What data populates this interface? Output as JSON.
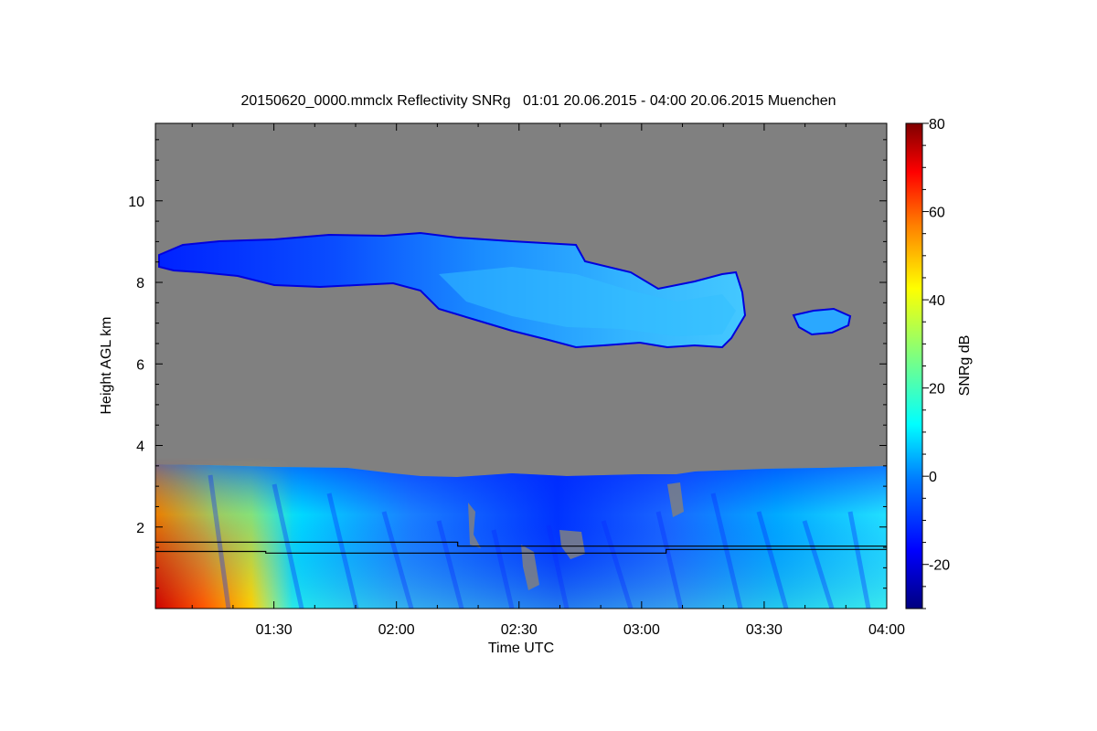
{
  "chart_data": {
    "type": "heatmap",
    "title": "20150620_0000.mmclx Reflectivity SNRg   01:01 20.06.2015 - 04:00 20.06.2015 Muenchen",
    "xlabel": "Time UTC",
    "ylabel": "Height AGL km",
    "colorbar_label": "SNRg dB",
    "xlim": [
      "01:01",
      "04:00"
    ],
    "ylim": [
      0,
      11.9
    ],
    "x_ticks": [
      "01:30",
      "02:00",
      "02:30",
      "03:00",
      "03:30",
      "04:00"
    ],
    "y_ticks": [
      2,
      4,
      6,
      8,
      10
    ],
    "colorbar_range": [
      -30,
      80
    ],
    "colorbar_ticks": [
      -20,
      0,
      20,
      40,
      60,
      80
    ],
    "background_color": "#808080",
    "colormap": [
      "#00007f",
      "#0000ff",
      "#007fff",
      "#00ffff",
      "#7fff7f",
      "#ffff00",
      "#ff7f00",
      "#ff0000",
      "#7f0000"
    ],
    "lines": [
      {
        "points": [
          [
            "01:01",
            1.63
          ],
          [
            "02:15",
            1.63
          ],
          [
            "02:15",
            1.53
          ],
          [
            "04:00",
            1.53
          ]
        ]
      },
      {
        "points": [
          [
            "01:01",
            1.4
          ],
          [
            "01:28",
            1.4
          ],
          [
            "01:28",
            1.36
          ],
          [
            "03:06",
            1.36
          ],
          [
            "03:06",
            1.45
          ],
          [
            "04:00",
            1.45
          ]
        ]
      }
    ]
  }
}
